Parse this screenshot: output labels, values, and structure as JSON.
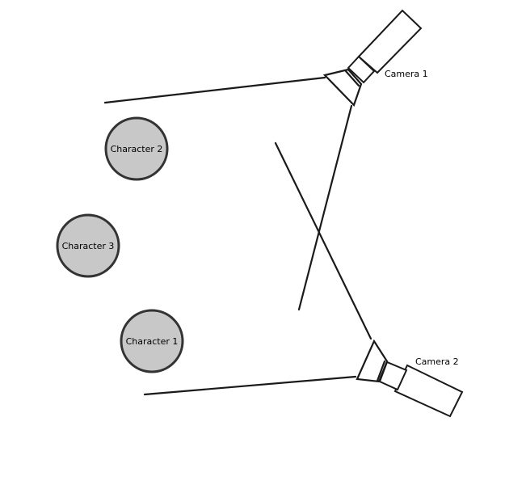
{
  "characters": [
    {
      "label": "Character 2",
      "fill": "#c8c8c8"
    },
    {
      "label": "Character 3",
      "fill": "#c8c8c8"
    },
    {
      "label": "Character 1",
      "fill": "#c8c8c8"
    }
  ],
  "cameras": [
    {
      "label": "Camera 1",
      "icon": "video-camera-icon"
    },
    {
      "label": "Camera 2",
      "icon": "video-camera-icon"
    }
  ],
  "colors": {
    "line": "#1a1a1a",
    "character_fill": "#c8c8c8",
    "character_stroke": "#333333",
    "background": "#ffffff"
  }
}
